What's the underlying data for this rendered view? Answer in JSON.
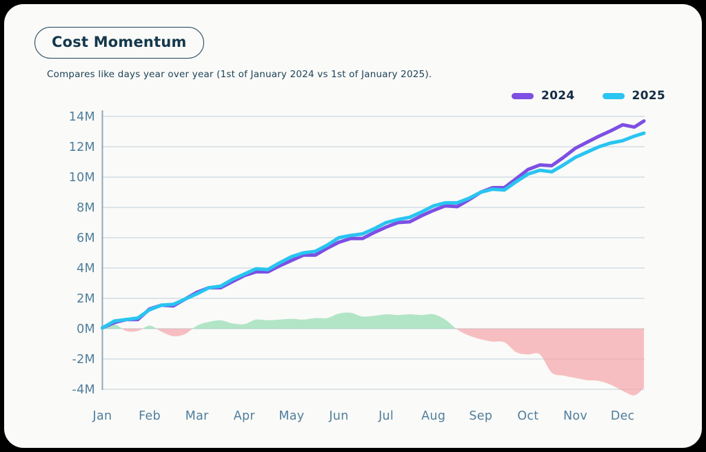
{
  "card": {
    "title": "Cost Momentum",
    "subtitle": "Compares like days year over year (1st of January 2024 vs 1st of January 2025)."
  },
  "legend": {
    "items": [
      {
        "label": "2024",
        "color": "#7D4FE3"
      },
      {
        "label": "2025",
        "color": "#29C4F1"
      }
    ]
  },
  "colors": {
    "series_2024": "#7D4FE3",
    "series_2025": "#29C4F1",
    "diff_positive": "#86D9A8",
    "diff_negative": "#F69AA0",
    "gridline": "#D2DCE3",
    "axis_line": "#8FA9B8",
    "tick_label": "#4E7E9C",
    "card_background": "#FAFAF8",
    "frame": "#000000"
  },
  "chart_data": {
    "type": "line",
    "title": "Cost Momentum",
    "subtitle": "Compares like days year over year (1st of January 2024 vs 1st of January 2025).",
    "grid": "horizontal",
    "legend_position": "top-right",
    "categories": [
      "Jan",
      "Feb",
      "Mar",
      "Apr",
      "May",
      "Jun",
      "Jul",
      "Aug",
      "Sep",
      "Oct",
      "Nov",
      "Dec"
    ],
    "y_unit": "M",
    "ylim": [
      -4,
      14
    ],
    "yticks": [
      14,
      12,
      10,
      8,
      6,
      4,
      2,
      0,
      -2,
      -4
    ],
    "y_tick_labels": [
      "14M",
      "12M",
      "10M",
      "8M",
      "6M",
      "4M",
      "2M",
      "0M",
      "-2M",
      "-4M"
    ],
    "x_months": [
      0,
      0.25,
      0.5,
      0.75,
      1,
      1.25,
      1.5,
      1.75,
      2,
      2.25,
      2.5,
      2.75,
      3,
      3.25,
      3.5,
      3.75,
      4,
      4.25,
      4.5,
      4.75,
      5,
      5.25,
      5.5,
      5.75,
      6,
      6.25,
      6.5,
      6.75,
      7,
      7.25,
      7.5,
      7.75,
      8,
      8.25,
      8.5,
      8.75,
      9,
      9.25,
      9.5,
      9.75,
      10,
      10.25,
      10.5,
      10.75,
      11,
      11.25,
      11.45
    ],
    "series": [
      {
        "name": "2024",
        "color": "#7D4FE3",
        "values": [
          0.05,
          0.4,
          0.6,
          0.6,
          1.3,
          1.55,
          1.5,
          1.95,
          2.4,
          2.7,
          2.7,
          3.1,
          3.5,
          3.75,
          3.75,
          4.15,
          4.5,
          4.85,
          4.85,
          5.3,
          5.7,
          5.95,
          5.95,
          6.35,
          6.7,
          7.0,
          7.05,
          7.45,
          7.8,
          8.1,
          8.05,
          8.5,
          9.0,
          9.3,
          9.3,
          9.9,
          10.5,
          10.8,
          10.75,
          11.3,
          11.9,
          12.3,
          12.7,
          13.05,
          13.45,
          13.3,
          13.7
        ]
      },
      {
        "name": "2025",
        "color": "#29C4F1",
        "values": [
          0.05,
          0.5,
          0.6,
          0.7,
          1.25,
          1.55,
          1.6,
          1.95,
          2.3,
          2.7,
          2.8,
          3.25,
          3.6,
          3.95,
          3.9,
          4.35,
          4.75,
          5.0,
          5.1,
          5.5,
          6.0,
          6.15,
          6.25,
          6.6,
          7.0,
          7.2,
          7.35,
          7.7,
          8.1,
          8.3,
          8.3,
          8.6,
          9.0,
          9.2,
          9.15,
          9.7,
          10.2,
          10.45,
          10.35,
          10.8,
          11.3,
          11.65,
          12.0,
          12.25,
          12.4,
          12.7,
          12.9
        ]
      }
    ],
    "difference_area": {
      "name": "year-over-year difference band",
      "positive_color": "#86D9A8",
      "negative_color": "#F69AA0",
      "values": [
        0.05,
        0.3,
        -0.15,
        -0.15,
        0.2,
        -0.2,
        -0.5,
        -0.35,
        0.2,
        0.45,
        0.55,
        0.35,
        0.3,
        0.6,
        0.55,
        0.6,
        0.65,
        0.6,
        0.7,
        0.7,
        1.0,
        1.05,
        0.8,
        0.85,
        0.95,
        0.9,
        0.95,
        0.9,
        0.95,
        0.6,
        -0.05,
        -0.45,
        -0.7,
        -0.85,
        -0.9,
        -1.55,
        -1.7,
        -1.7,
        -2.9,
        -3.1,
        -3.25,
        -3.4,
        -3.45,
        -3.7,
        -4.1,
        -4.4,
        -3.9
      ]
    }
  }
}
